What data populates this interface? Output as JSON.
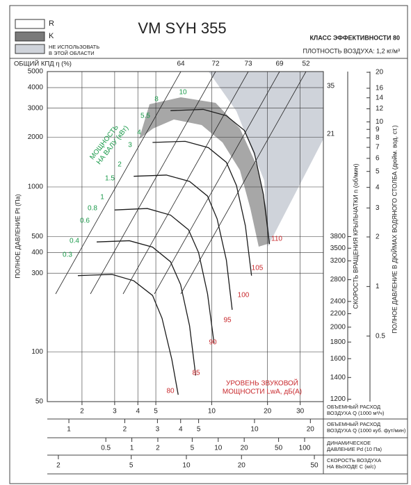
{
  "chart_data": {
    "type": "line",
    "title": "VM SYH 355",
    "efficiency_class": "КЛАСС ЭФФЕКТИВНОСТИ 80",
    "density": "ПЛОТНОСТЬ ВОЗДУХА: 1,2 кг/м³",
    "legend": [
      {
        "label": "R",
        "color": "#ffffff"
      },
      {
        "label": "K",
        "color": "#7a7a7a"
      },
      {
        "label_lines": [
          "НЕ ИСПОЛЬЗОВАТЬ",
          "В ЭТОЙ ОБЛАСТИ"
        ],
        "color": "#cfd3da"
      }
    ],
    "efficiency_label": "ОБЩИЙ КПД η (%)",
    "efficiency_values": [
      64,
      72,
      73,
      69,
      52
    ],
    "ylabel": "ПОЛНОЕ ДАВЛЕНИЕ Pt (Па)",
    "y2label": "СКОРОСТЬ ВРАЩЕНИЯ КРЫЛЬЧАТКИ n (об/мин)",
    "y3label": "ПОЛНОЕ ДАВЛЕНИЕ В ДЮЙМАХ ВОДЯНОГО СТОЛБА (дюйм. вод. ст.)",
    "xlabel_lines": [
      "ОБЪЕМНЫЙ РАСХОД",
      "ВОЗДУХА Q (1000 м³/ч)"
    ],
    "log_x": true,
    "log_y": true,
    "grid": true,
    "xlim": [
      1.3,
      40
    ],
    "xticks": [
      2,
      3,
      4,
      5,
      10,
      20,
      30
    ],
    "ylim": [
      50,
      5000
    ],
    "yticks": [
      5000,
      4000,
      3000,
      2000,
      1000,
      500,
      400,
      300,
      100,
      50
    ],
    "y2lim": [
      1180,
      12240
    ],
    "y2ticks": [
      3800,
      3500,
      3200,
      2800,
      2400,
      2200,
      2000,
      1800,
      1600,
      1400,
      1200
    ],
    "y3lim": [
      0.2,
      20.2
    ],
    "y3ticks": [
      20,
      16,
      14,
      12,
      10,
      9,
      8,
      7,
      6,
      5,
      4,
      3,
      2,
      1,
      0.5
    ],
    "series": [
      {
        "color": "#1a1a1a",
        "x": [
          6,
          9,
          12,
          15,
          17,
          19,
          20.5
        ],
        "values": [
          2900,
          2950,
          2700,
          2200,
          1600,
          900,
          450
        ]
      },
      {
        "color": "#1a1a1a",
        "x": [
          4.8,
          7.2,
          9.6,
          12,
          13.6,
          15.2,
          16.4
        ],
        "values": [
          1860,
          1890,
          1730,
          1410,
          1020,
          580,
          290
        ]
      },
      {
        "color": "#1a1a1a",
        "x": [
          3.8,
          5.7,
          7.6,
          9.5,
          10.7,
          12,
          12.9
        ],
        "values": [
          1160,
          1180,
          1080,
          880,
          640,
          360,
          180
        ]
      },
      {
        "color": "#1a1a1a",
        "x": [
          3,
          4.5,
          6,
          7.5,
          8.5,
          9.5,
          10.3
        ],
        "values": [
          725,
          740,
          675,
          550,
          400,
          225,
          113
        ]
      },
      {
        "color": "#1a1a1a",
        "x": [
          2.4,
          3.6,
          4.8,
          6,
          6.8,
          7.6,
          8.2
        ],
        "values": [
          464,
          472,
          432,
          352,
          256,
          144,
          72
        ]
      },
      {
        "color": "#1a1a1a",
        "x": [
          1.9,
          2.9,
          3.8,
          4.8,
          5.4,
          6.1,
          6.6
        ],
        "values": [
          290,
          295,
          270,
          220,
          160,
          90,
          55
        ]
      }
    ],
    "power_title_lines": [
      "МОЩНОСТЬ",
      "НА ВАЛУ (кВт)"
    ],
    "power_labels": [
      "0.3",
      "0.4",
      "0.6",
      "0.8",
      "1",
      "1.5",
      "2",
      "3",
      "4",
      "5.5",
      "8",
      "10"
    ],
    "sound_title_lines": [
      "УРОВЕНЬ ЗВУКОВОЙ",
      "МОЩНОСТИ LwA, дБ(А)"
    ],
    "sound_labels": [
      "80",
      "85",
      "90",
      "95",
      "100",
      "105",
      "110"
    ],
    "side_labels": [
      "35",
      "21"
    ],
    "scales": [
      {
        "label_lines": [
          "ОБЪЕМНЫЙ РАСХОД",
          "ВОЗДУХА Q (1000 куб. фут/мин)"
        ],
        "lim": [
          0.765,
          23.5
        ],
        "ticks": [
          1,
          2,
          3,
          4,
          5,
          10,
          20
        ]
      },
      {
        "label_lines": [
          "ДИНАМИЧЕСКОЕ",
          "ДАВЛЕНИЕ Pd (10 Па)"
        ],
        "lim": [
          0.105,
          165
        ],
        "ticks": [
          0.5,
          1,
          2,
          5,
          10,
          20,
          50,
          100
        ]
      },
      {
        "label_lines": [
          "СКОРОСТЬ ВОЗДУХА",
          "НА ВЫХОДЕ C (м/с)"
        ],
        "lim": [
          1.74,
          56
        ],
        "ticks": [
          2,
          5,
          10,
          20,
          50
        ]
      }
    ]
  }
}
